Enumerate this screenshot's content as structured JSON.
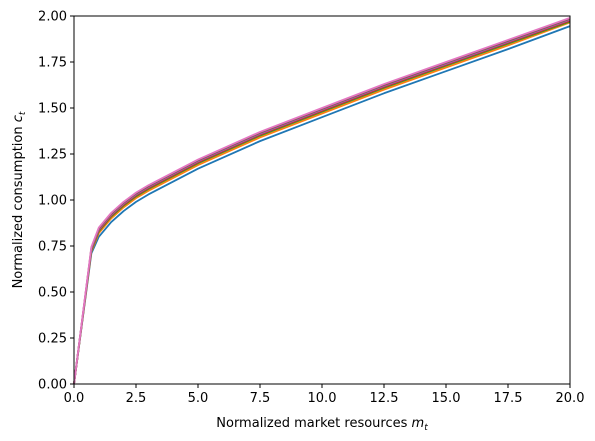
{
  "chart_data": {
    "type": "line",
    "xlabel": "Normalized market resources",
    "xlabel_var": "m",
    "xlabel_sub": "t",
    "ylabel": "Normalized consumption",
    "ylabel_var": "c",
    "ylabel_sub": "t",
    "xlim": [
      0,
      20
    ],
    "ylim": [
      0,
      2
    ],
    "x_ticks": [
      0,
      2.5,
      5,
      7.5,
      10,
      12.5,
      15,
      17.5,
      20
    ],
    "x_tick_labels": [
      "0.0",
      "2.5",
      "5.0",
      "7.5",
      "10.0",
      "12.5",
      "15.0",
      "17.5",
      "20.0"
    ],
    "y_ticks": [
      0,
      0.25,
      0.5,
      0.75,
      1.0,
      1.25,
      1.5,
      1.75,
      2.0
    ],
    "y_tick_labels": [
      "0.00",
      "0.25",
      "0.50",
      "0.75",
      "1.00",
      "1.25",
      "1.50",
      "1.75",
      "2.00"
    ],
    "grid": false,
    "series": [
      {
        "color": "#1f77b4",
        "x": [
          0,
          0.7,
          1.0,
          1.5,
          2.0,
          2.5,
          3,
          4,
          5,
          7.5,
          10,
          12.5,
          15,
          17.5,
          20
        ],
        "y": [
          0,
          0.71,
          0.8,
          0.88,
          0.94,
          0.99,
          1.03,
          1.1,
          1.17,
          1.32,
          1.45,
          1.58,
          1.7,
          1.82,
          1.945
        ]
      },
      {
        "color": "#ff7f0e",
        "x": [
          0,
          0.7,
          1.0,
          1.5,
          2.0,
          2.5,
          3,
          4,
          5,
          7.5,
          10,
          12.5,
          15,
          17.5,
          20
        ],
        "y": [
          0,
          0.72,
          0.82,
          0.9,
          0.96,
          1.01,
          1.05,
          1.12,
          1.19,
          1.34,
          1.47,
          1.6,
          1.72,
          1.84,
          1.965
        ]
      },
      {
        "color": "#2ca02c",
        "x": [
          0,
          0.7,
          1.0,
          1.5,
          2.0,
          2.5,
          3,
          4,
          5,
          7.5,
          10,
          12.5,
          15,
          17.5,
          20
        ],
        "y": [
          0,
          0.725,
          0.83,
          0.91,
          0.97,
          1.02,
          1.06,
          1.13,
          1.2,
          1.35,
          1.48,
          1.61,
          1.73,
          1.85,
          1.97
        ]
      },
      {
        "color": "#d62728",
        "x": [
          0,
          0.7,
          1.0,
          1.5,
          2.0,
          2.5,
          3,
          4,
          5,
          7.5,
          10,
          12.5,
          15,
          17.5,
          20
        ],
        "y": [
          0,
          0.73,
          0.835,
          0.915,
          0.975,
          1.025,
          1.065,
          1.135,
          1.205,
          1.355,
          1.485,
          1.615,
          1.735,
          1.855,
          1.975
        ]
      },
      {
        "color": "#9467bd",
        "x": [
          0,
          0.7,
          1.0,
          1.5,
          2.0,
          2.5,
          3,
          4,
          5,
          7.5,
          10,
          12.5,
          15,
          17.5,
          20
        ],
        "y": [
          0,
          0.735,
          0.84,
          0.92,
          0.98,
          1.03,
          1.07,
          1.14,
          1.21,
          1.36,
          1.49,
          1.62,
          1.74,
          1.86,
          1.98
        ]
      },
      {
        "color": "#8c564b",
        "x": [
          0,
          0.7,
          1.0,
          1.5,
          2.0,
          2.5,
          3,
          4,
          5,
          7.5,
          10,
          12.5,
          15,
          17.5,
          20
        ],
        "y": [
          0,
          0.74,
          0.845,
          0.925,
          0.985,
          1.035,
          1.075,
          1.145,
          1.215,
          1.365,
          1.495,
          1.625,
          1.745,
          1.865,
          1.985
        ]
      },
      {
        "color": "#e377c2",
        "x": [
          0,
          0.7,
          1.0,
          1.5,
          2.0,
          2.5,
          3,
          4,
          5,
          7.5,
          10,
          12.5,
          15,
          17.5,
          20
        ],
        "y": [
          0,
          0.745,
          0.85,
          0.93,
          0.99,
          1.04,
          1.08,
          1.15,
          1.22,
          1.37,
          1.5,
          1.63,
          1.75,
          1.87,
          1.99
        ]
      }
    ]
  }
}
